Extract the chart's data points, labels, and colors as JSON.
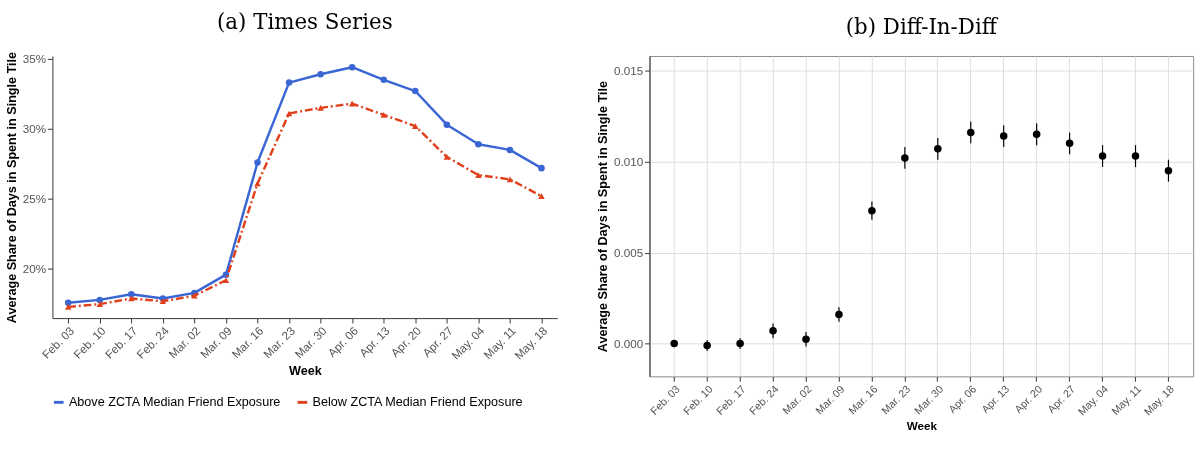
{
  "chart_data": [
    {
      "type": "line",
      "title": "(a) Times Series",
      "xlabel": "Week",
      "ylabel": "Average Share of Days in Spent in Single Tile",
      "categories": [
        "Feb. 03",
        "Feb. 10",
        "Feb. 17",
        "Feb. 24",
        "Mar. 02",
        "Mar. 09",
        "Mar. 16",
        "Mar. 23",
        "Mar. 30",
        "Apr. 06",
        "Apr. 13",
        "Apr. 20",
        "Apr. 27",
        "May. 04",
        "May. 11",
        "May. 18"
      ],
      "series": [
        {
          "name": "Above ZCTA Median Friend Exposure",
          "color": "#3a66d4",
          "marker": "circle",
          "line_style": "solid",
          "values": [
            17.6,
            17.8,
            18.2,
            17.9,
            18.3,
            19.6,
            27.6,
            33.3,
            33.9,
            34.4,
            33.5,
            32.7,
            30.3,
            28.9,
            28.5,
            27.2
          ]
        },
        {
          "name": "Below ZCTA Median Friend Exposure",
          "color": "#e0401c",
          "marker": "triangle",
          "line_style": "dashed",
          "values": [
            17.3,
            17.5,
            17.9,
            17.7,
            18.1,
            19.2,
            26.1,
            31.1,
            31.5,
            31.8,
            31.0,
            30.2,
            28.0,
            26.7,
            26.4,
            25.2
          ]
        }
      ],
      "ylim": [
        16.5,
        35.2
      ],
      "yticks": [
        {
          "value": 20,
          "label": "20%"
        },
        {
          "value": 25,
          "label": "25%"
        },
        {
          "value": 30,
          "label": "30%"
        },
        {
          "value": 35,
          "label": "35%"
        }
      ],
      "grid": false,
      "legend": "bottom"
    },
    {
      "type": "scatter",
      "title": "(b) Diff-In-Diff",
      "xlabel": "Week",
      "ylabel": "Average Share of Days in Spent in Single Tile",
      "categories": [
        "Feb. 03",
        "Feb. 10",
        "Feb. 17",
        "Feb. 24",
        "Mar. 02",
        "Mar. 09",
        "Mar. 16",
        "Mar. 23",
        "Mar. 30",
        "Apr. 06",
        "Apr. 13",
        "Apr. 20",
        "Apr. 27",
        "May. 04",
        "May. 11",
        "May. 18"
      ],
      "values": [
        0,
        -0.0001,
        0,
        0.0007,
        0.00024,
        0.0016,
        0.0073,
        0.0102,
        0.0107,
        0.0116,
        0.0114,
        0.0115,
        0.011,
        0.0103,
        0.0103,
        0.0095
      ],
      "errors": [
        null,
        0.0003,
        0.0003,
        0.0004,
        0.0004,
        0.0004,
        0.0005,
        0.0006,
        0.0006,
        0.0006,
        0.0006,
        0.0006,
        0.0006,
        0.0006,
        0.0006,
        0.0006
      ],
      "color": "#000000",
      "marker": "circle",
      "ylim": [
        -0.0018,
        0.0158
      ],
      "yticks": [
        {
          "value": 0,
          "label": "0.000"
        },
        {
          "value": 0.005,
          "label": "0.005"
        },
        {
          "value": 0.01,
          "label": "0.010"
        },
        {
          "value": 0.015,
          "label": "0.015"
        }
      ],
      "grid": true
    }
  ]
}
